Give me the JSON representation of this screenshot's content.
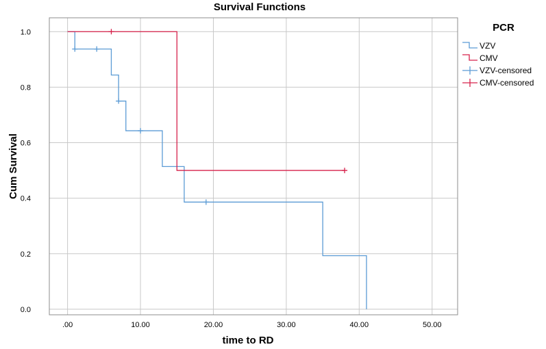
{
  "chart_data": {
    "type": "line",
    "step": true,
    "title": "Survival Functions",
    "xlabel": "time to RD",
    "ylabel": "Cum Survival",
    "xlim": [
      -2.5,
      53.5
    ],
    "ylim": [
      -0.02,
      1.05
    ],
    "x_ticks": [
      0,
      10,
      20,
      30,
      40,
      50
    ],
    "x_tick_labels": [
      ".00",
      "10.00",
      "20.00",
      "30.00",
      "40.00",
      "50.00"
    ],
    "y_ticks": [
      0,
      0.2,
      0.4,
      0.6,
      0.8,
      1.0
    ],
    "y_tick_labels": [
      "0.0",
      "0.2",
      "0.4",
      "0.6",
      "0.8",
      "1.0"
    ],
    "grid": true,
    "legend": {
      "title": "PCR",
      "position": "top-right",
      "entries": [
        "VZV",
        "CMV",
        "VZV-censored",
        "CMV-censored"
      ]
    },
    "series": [
      {
        "name": "VZV",
        "color": "#5b9bd5",
        "steps": [
          [
            0,
            1.0
          ],
          [
            1,
            0.9375
          ],
          [
            6,
            0.84375
          ],
          [
            7,
            0.75
          ],
          [
            8,
            0.643
          ],
          [
            13,
            0.514
          ],
          [
            16,
            0.386
          ],
          [
            35,
            0.193
          ],
          [
            41,
            0.0
          ]
        ],
        "censored": [
          [
            1,
            0.9375
          ],
          [
            4,
            0.9375
          ],
          [
            7,
            0.75
          ],
          [
            10,
            0.643
          ],
          [
            19,
            0.386
          ]
        ]
      },
      {
        "name": "CMV",
        "color": "#d6204a",
        "steps": [
          [
            0,
            1.0
          ],
          [
            15,
            0.5
          ],
          [
            38,
            0.5
          ]
        ],
        "censored": [
          [
            6,
            1.0
          ],
          [
            38,
            0.5
          ]
        ]
      }
    ]
  }
}
